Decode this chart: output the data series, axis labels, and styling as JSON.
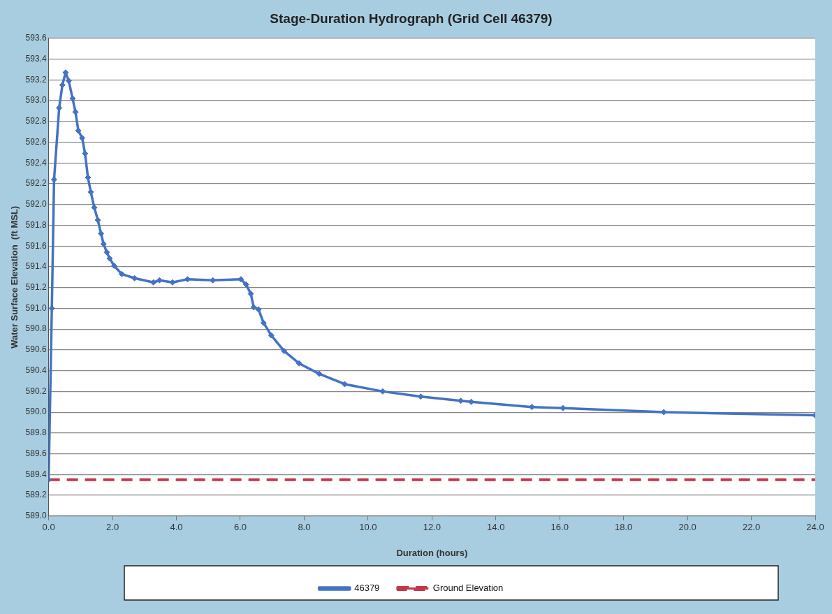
{
  "chart_data": {
    "type": "line",
    "title": "Stage-Duration Hydrograph (Grid Cell 46379)",
    "xlabel": "Duration (hours)",
    "ylabel": "Water Surface Elevation  (ft MSL)",
    "xlim": [
      0,
      24
    ],
    "xticks": [
      {
        "value": 0,
        "label": "0.0"
      },
      {
        "value": 2,
        "label": "2.0"
      },
      {
        "value": 4,
        "label": "4.0"
      },
      {
        "value": 6,
        "label": "6.0"
      },
      {
        "value": 8,
        "label": "8.0"
      },
      {
        "value": 10,
        "label": "10.0"
      },
      {
        "value": 12,
        "label": "12.0"
      },
      {
        "value": 14,
        "label": "14.0"
      },
      {
        "value": 16,
        "label": "16.0"
      },
      {
        "value": 18,
        "label": "18.0"
      },
      {
        "value": 20,
        "label": "20.0"
      },
      {
        "value": 22,
        "label": "22.0"
      },
      {
        "value": 24,
        "label": "24.0"
      }
    ],
    "ylim": [
      589.0,
      593.6
    ],
    "yticks": [
      {
        "value": 589.0,
        "label": "589.0"
      },
      {
        "value": 589.2,
        "label": "589.2"
      },
      {
        "value": 589.4,
        "label": "589.4"
      },
      {
        "value": 589.6,
        "label": "589.6"
      },
      {
        "value": 589.8,
        "label": "589.8"
      },
      {
        "value": 590.0,
        "label": "590.0"
      },
      {
        "value": 590.2,
        "label": "590.2"
      },
      {
        "value": 590.4,
        "label": "590.4"
      },
      {
        "value": 590.6,
        "label": "590.6"
      },
      {
        "value": 590.8,
        "label": "590.8"
      },
      {
        "value": 591.0,
        "label": "591.0"
      },
      {
        "value": 591.2,
        "label": "591.2"
      },
      {
        "value": 591.4,
        "label": "591.4"
      },
      {
        "value": 591.6,
        "label": "591.6"
      },
      {
        "value": 591.8,
        "label": "591.8"
      },
      {
        "value": 592.0,
        "label": "592.0"
      },
      {
        "value": 592.2,
        "label": "592.2"
      },
      {
        "value": 592.4,
        "label": "592.4"
      },
      {
        "value": 592.6,
        "label": "592.6"
      },
      {
        "value": 592.8,
        "label": "592.8"
      },
      {
        "value": 593.0,
        "label": "593.0"
      },
      {
        "value": 593.2,
        "label": "593.2"
      },
      {
        "value": 593.4,
        "label": "593.4"
      },
      {
        "value": 593.6,
        "label": "593.6"
      }
    ],
    "grid": "y",
    "legend": "bottom",
    "series": [
      {
        "name": "46379",
        "color": "#4472c4",
        "marker": "diamond",
        "line_style": "solid",
        "x": [
          0,
          0.1,
          0.17,
          0.33,
          0.43,
          0.53,
          0.63,
          0.75,
          0.84,
          0.93,
          1.05,
          1.14,
          1.23,
          1.32,
          1.43,
          1.54,
          1.64,
          1.72,
          1.82,
          1.91,
          2.05,
          2.29,
          2.69,
          3.28,
          3.47,
          3.88,
          4.35,
          5.14,
          6.02,
          6.18,
          6.33,
          6.42,
          6.57,
          6.73,
          6.97,
          7.37,
          7.84,
          8.47,
          9.27,
          10.46,
          11.65,
          12.9,
          13.23,
          15.13,
          16.1,
          19.26,
          24
        ],
        "values": [
          589.35,
          591.0,
          592.24,
          592.93,
          593.15,
          593.27,
          593.19,
          593.02,
          592.89,
          592.71,
          592.64,
          592.49,
          592.26,
          592.12,
          591.97,
          591.85,
          591.72,
          591.62,
          591.54,
          591.48,
          591.41,
          591.33,
          591.29,
          591.25,
          591.27,
          591.25,
          591.28,
          591.27,
          591.28,
          591.23,
          591.14,
          591.01,
          590.99,
          590.86,
          590.74,
          590.59,
          590.47,
          590.37,
          590.27,
          590.2,
          590.15,
          590.11,
          590.1,
          590.05,
          590.04,
          590.0,
          589.97
        ]
      },
      {
        "name": "Ground Elevation",
        "color": "#c0394b",
        "marker": "none",
        "line_style": "dashed",
        "x": [
          0,
          24
        ],
        "values": [
          589.35,
          589.35
        ]
      }
    ]
  }
}
